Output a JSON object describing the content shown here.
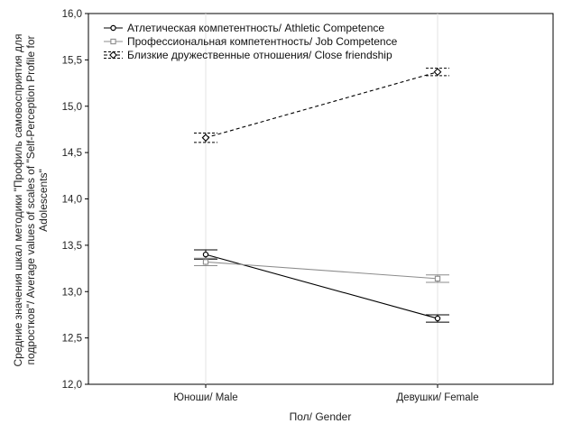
{
  "chart_data": {
    "type": "line",
    "title": "",
    "xlabel": "Пол/ Gender",
    "ylabel_lines": [
      "Средние значения шкал методики \"Профиль самовосприятия для",
      "подростков\"/ Average values of scales of \"Self-Perception Profile for",
      "Adolescents\""
    ],
    "categories": [
      "Юноши/ Male",
      "Девушки/ Female"
    ],
    "ylim": [
      12.0,
      16.0
    ],
    "yticks": [
      "12,0",
      "12,5",
      "13,0",
      "13,5",
      "14,0",
      "14,5",
      "15,0",
      "15,5",
      "16,0"
    ],
    "ytick_values": [
      12.0,
      12.5,
      13.0,
      13.5,
      14.0,
      14.5,
      15.0,
      15.5,
      16.0
    ],
    "grid": true,
    "legend_position": "top-left",
    "series": [
      {
        "name": "Атлетическая компетентность/ Athletic Competence",
        "values": [
          13.4,
          12.71
        ],
        "error": [
          0.05,
          0.04
        ],
        "color": "#000000",
        "dash": "solid",
        "marker": "circle"
      },
      {
        "name": "Профессиональная компетентность/ Job Competence",
        "values": [
          13.32,
          13.14
        ],
        "error": [
          0.04,
          0.04
        ],
        "color": "#8c8c8c",
        "dash": "solid",
        "marker": "square"
      },
      {
        "name": "Близкие дружественные отношения/ Close friendship",
        "values": [
          14.66,
          15.37
        ],
        "error": [
          0.05,
          0.04
        ],
        "color": "#000000",
        "dash": "dashed",
        "marker": "diamond"
      }
    ]
  }
}
